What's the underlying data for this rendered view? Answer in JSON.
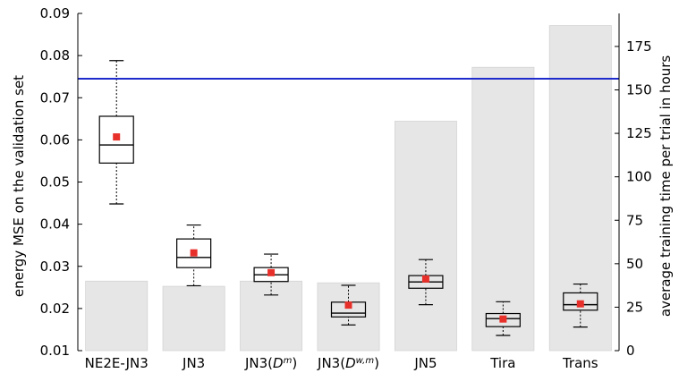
{
  "chart_data": {
    "type": "box",
    "title": "",
    "categories": [
      "NE2E-JN3",
      "JN3",
      "JN3(D^m)",
      "JN3(D^{w,m})",
      "JN5",
      "Tira",
      "Trans"
    ],
    "category_labels": [
      {
        "base": "NE2E-JN3",
        "sup": ""
      },
      {
        "base": "JN3(",
        "sup": "",
        "tail": ""
      },
      {
        "base": "JN3(",
        "var": "D",
        "sup": "m",
        "tail": ")"
      },
      {
        "base": "JN3(",
        "var": "D",
        "sup": "w,m",
        "tail": ")"
      },
      {
        "base": "JN5",
        "sup": ""
      },
      {
        "base": "Tira",
        "sup": ""
      },
      {
        "base": "Trans",
        "sup": ""
      }
    ],
    "ylabel_left": "energy MSE on the validation set",
    "ylabel_right": "average training time per trial in hours",
    "ylim_left": [
      0.01,
      0.09
    ],
    "yticks_left": [
      "0.01",
      "0.02",
      "0.03",
      "0.04",
      "0.05",
      "0.06",
      "0.07",
      "0.08",
      "0.09"
    ],
    "ylim_right": [
      0,
      194
    ],
    "yticks_right": [
      "0",
      "25",
      "50",
      "75",
      "100",
      "125",
      "150",
      "175"
    ],
    "training_hours": [
      40,
      37,
      40,
      39,
      132,
      163,
      187
    ],
    "reference_line_mse": 0.0745,
    "boxes": [
      {
        "whisker_low": 0.0448,
        "q1": 0.0545,
        "median": 0.0588,
        "q3": 0.0656,
        "whisker_high": 0.0788,
        "mean": 0.0607
      },
      {
        "whisker_low": 0.0254,
        "q1": 0.0297,
        "median": 0.0321,
        "q3": 0.0365,
        "whisker_high": 0.0398,
        "mean": 0.0332
      },
      {
        "whisker_low": 0.0232,
        "q1": 0.0264,
        "median": 0.028,
        "q3": 0.0297,
        "whisker_high": 0.0329,
        "mean": 0.0285
      },
      {
        "whisker_low": 0.0161,
        "q1": 0.018,
        "median": 0.0189,
        "q3": 0.0215,
        "whisker_high": 0.0255,
        "mean": 0.0208
      },
      {
        "whisker_low": 0.0209,
        "q1": 0.0248,
        "median": 0.0263,
        "q3": 0.0278,
        "whisker_high": 0.0316,
        "mean": 0.027
      },
      {
        "whisker_low": 0.0136,
        "q1": 0.0157,
        "median": 0.0176,
        "q3": 0.0188,
        "whisker_high": 0.0216,
        "mean": 0.0175
      },
      {
        "whisker_low": 0.0156,
        "q1": 0.0196,
        "median": 0.0209,
        "q3": 0.0237,
        "whisker_high": 0.0258,
        "mean": 0.0211
      }
    ],
    "colors": {
      "bar": "#e6e6e6",
      "box": "#000000",
      "mean_marker": "#e8302a",
      "reference_line": "#1f2bcc"
    },
    "grid": false,
    "legend": "none"
  }
}
